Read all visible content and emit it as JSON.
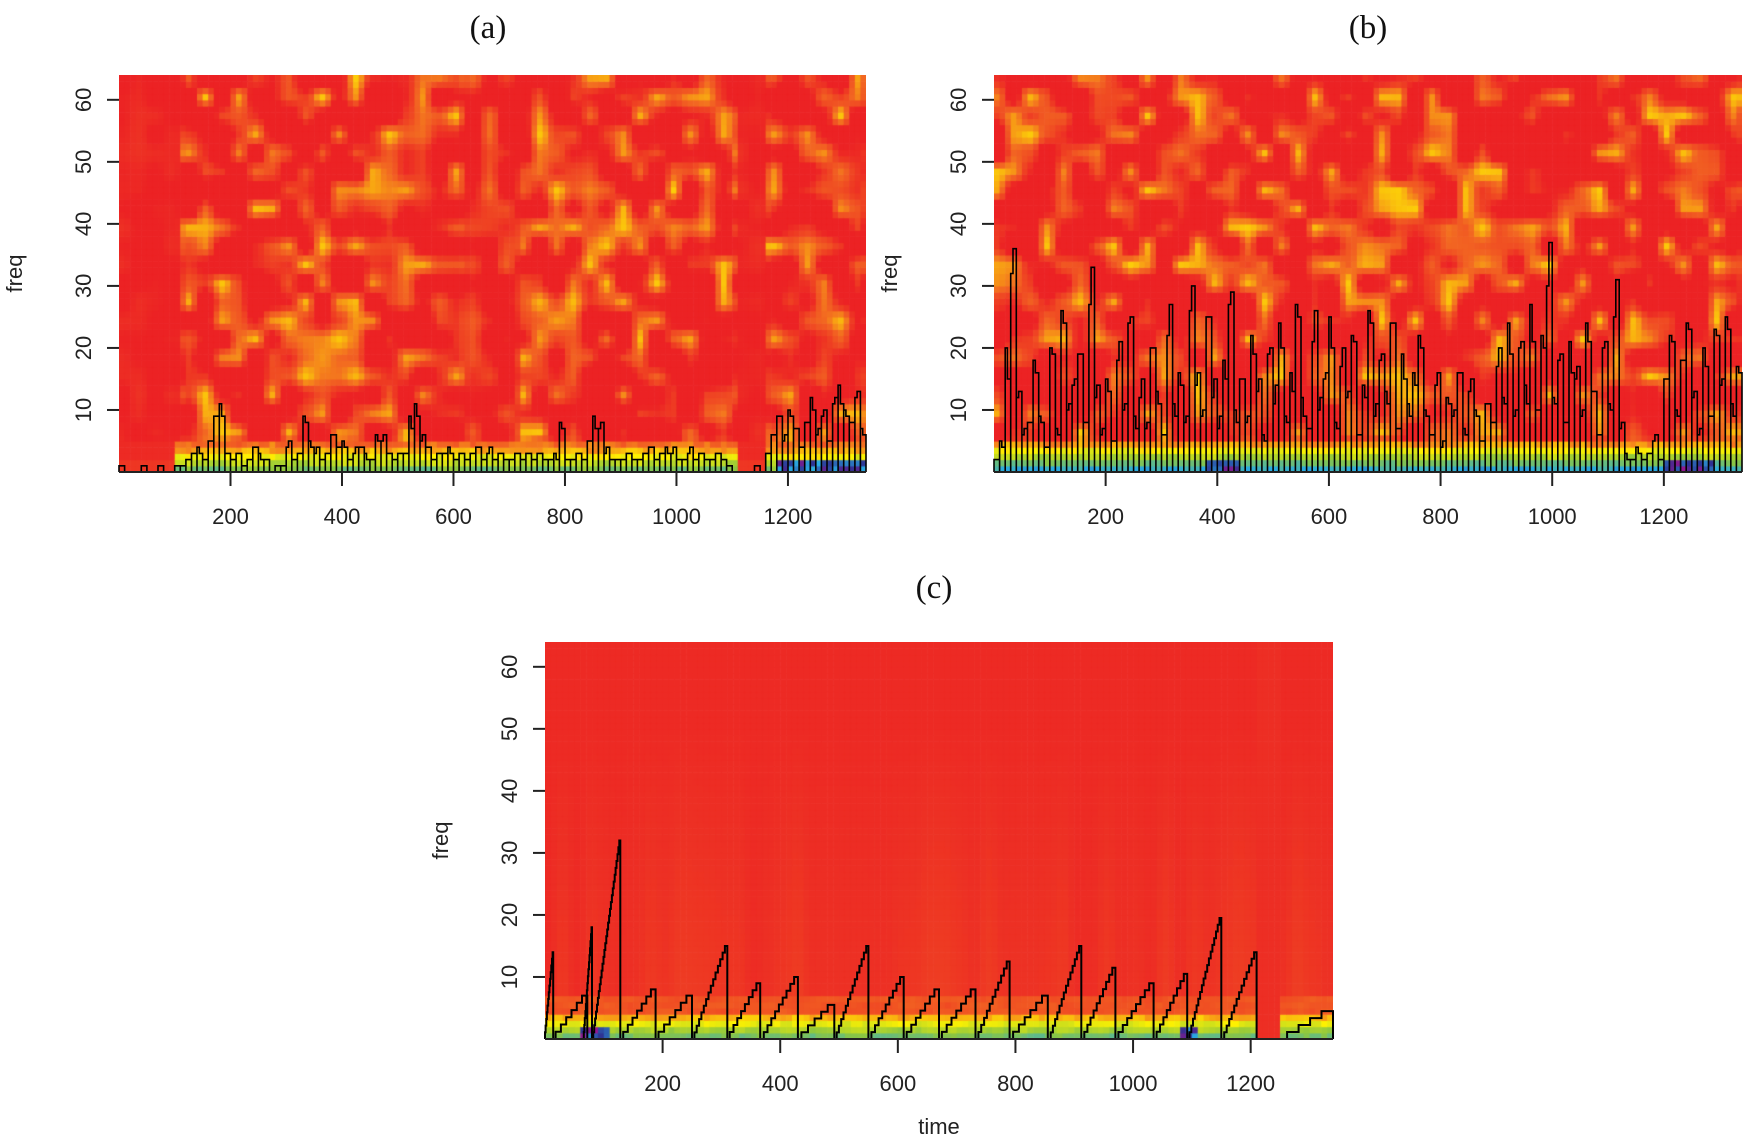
{
  "chart_data": [
    {
      "panel": "(a)",
      "type": "heatmap",
      "overlay": "step-line",
      "xlabel": "",
      "ylabel": "freq",
      "xlim": [
        0,
        1340
      ],
      "ylim": [
        0,
        64
      ],
      "xticks": [
        "200",
        "400",
        "600",
        "800",
        "1000",
        "1200"
      ],
      "yticks": [
        "10",
        "20",
        "30",
        "40",
        "50",
        "60"
      ],
      "line_sample_step": 10,
      "line_values": [
        1,
        0,
        0,
        0,
        1,
        0,
        0,
        1,
        0,
        0,
        1,
        1,
        2,
        3,
        4,
        2,
        5,
        9,
        11,
        3,
        2,
        3,
        1,
        2,
        4,
        3,
        2,
        0,
        1,
        1,
        4,
        2,
        3,
        9,
        5,
        3,
        2,
        3,
        6,
        4,
        5,
        2,
        3,
        4,
        3,
        2,
        6,
        5,
        3,
        2,
        3,
        3,
        9,
        11,
        5,
        4,
        2,
        3,
        3,
        4,
        2,
        3,
        2,
        3,
        4,
        2,
        3,
        2,
        3,
        2,
        2,
        3,
        2,
        3,
        2,
        3,
        2,
        2,
        3,
        8,
        2,
        2,
        3,
        2,
        5,
        9,
        7,
        3,
        2,
        2,
        2,
        3,
        2,
        2,
        3,
        4,
        2,
        3,
        4,
        3,
        2,
        2,
        3,
        2,
        3,
        2,
        2,
        3,
        2,
        1,
        0,
        0,
        0,
        0,
        1,
        0,
        3,
        6,
        9,
        5,
        10,
        7,
        4,
        8,
        12,
        6,
        9,
        5,
        11,
        14,
        10,
        8,
        12,
        7
      ]
    },
    {
      "panel": "(b)",
      "type": "heatmap",
      "overlay": "step-line",
      "xlabel": "",
      "ylabel": "freq",
      "xlim": [
        0,
        1340
      ],
      "ylim": [
        0,
        64
      ],
      "xticks": [
        "200",
        "400",
        "600",
        "800",
        "1000",
        "1200"
      ],
      "yticks": [
        "10",
        "20",
        "30",
        "40",
        "50",
        "60"
      ],
      "line_sample_step": 10,
      "line_values": [
        2,
        5,
        20,
        32,
        12,
        6,
        8,
        18,
        9,
        4,
        20,
        7,
        26,
        10,
        14,
        19,
        8,
        27,
        12,
        6,
        15,
        5,
        18,
        10,
        24,
        9,
        12,
        7,
        20,
        13,
        6,
        22,
        11,
        16,
        8,
        26,
        14,
        9,
        25,
        12,
        7,
        18,
        27,
        10,
        15,
        8,
        22,
        13,
        6,
        19,
        11,
        24,
        9,
        16,
        27,
        12,
        7,
        21,
        10,
        15,
        25,
        8,
        17,
        12,
        22,
        6,
        14,
        26,
        9,
        18,
        13,
        24,
        7,
        19,
        11,
        16,
        22,
        10,
        6,
        14,
        4,
        12,
        9,
        16,
        7,
        13,
        10,
        5,
        11,
        8,
        17,
        12,
        24,
        9,
        20,
        14,
        27,
        10,
        22,
        30,
        12,
        18,
        8,
        21,
        15,
        9,
        24,
        13,
        6,
        20,
        11,
        25,
        7,
        3,
        2,
        4,
        2,
        3,
        5,
        2,
        15,
        22,
        10,
        18,
        24,
        12,
        6,
        20,
        9,
        23,
        14,
        25,
        11,
        17
      ]
    },
    {
      "panel": "(c)",
      "type": "heatmap",
      "overlay": "step-line",
      "xlabel": "time",
      "ylabel": "freq",
      "xlim": [
        0,
        1340
      ],
      "ylim": [
        0,
        64
      ],
      "xticks": [
        "200",
        "400",
        "600",
        "800",
        "1000",
        "1200"
      ],
      "yticks": [
        "10",
        "20",
        "30",
        "40",
        "50",
        "60"
      ],
      "line_segments": [
        {
          "start": 0,
          "end": 14,
          "peak": 14
        },
        {
          "start": 18,
          "end": 72,
          "peak": 7
        },
        {
          "start": 66,
          "end": 80,
          "peak": 18
        },
        {
          "start": 82,
          "end": 128,
          "peak": 32
        },
        {
          "start": 133,
          "end": 188,
          "peak": 8
        },
        {
          "start": 193,
          "end": 250,
          "peak": 7
        },
        {
          "start": 254,
          "end": 310,
          "peak": 15
        },
        {
          "start": 314,
          "end": 366,
          "peak": 9
        },
        {
          "start": 372,
          "end": 430,
          "peak": 10
        },
        {
          "start": 436,
          "end": 492,
          "peak": 5.5
        },
        {
          "start": 496,
          "end": 550,
          "peak": 15
        },
        {
          "start": 555,
          "end": 610,
          "peak": 10
        },
        {
          "start": 615,
          "end": 670,
          "peak": 8
        },
        {
          "start": 675,
          "end": 732,
          "peak": 8
        },
        {
          "start": 737,
          "end": 790,
          "peak": 12.5
        },
        {
          "start": 796,
          "end": 855,
          "peak": 7
        },
        {
          "start": 860,
          "end": 912,
          "peak": 15
        },
        {
          "start": 917,
          "end": 970,
          "peak": 11.5
        },
        {
          "start": 975,
          "end": 1035,
          "peak": 9
        },
        {
          "start": 1040,
          "end": 1092,
          "peak": 10.5
        },
        {
          "start": 1096,
          "end": 1150,
          "peak": 19.5
        },
        {
          "start": 1155,
          "end": 1210,
          "peak": 14
        },
        {
          "start": 1262,
          "end": 1340,
          "peak": 4.5
        }
      ]
    }
  ],
  "colorscale": [
    "#ec2224",
    "#f26522",
    "#fff200",
    "#8dc63f",
    "#29abe2",
    "#2e3192",
    "#ec008c"
  ],
  "line_color": "#000000"
}
